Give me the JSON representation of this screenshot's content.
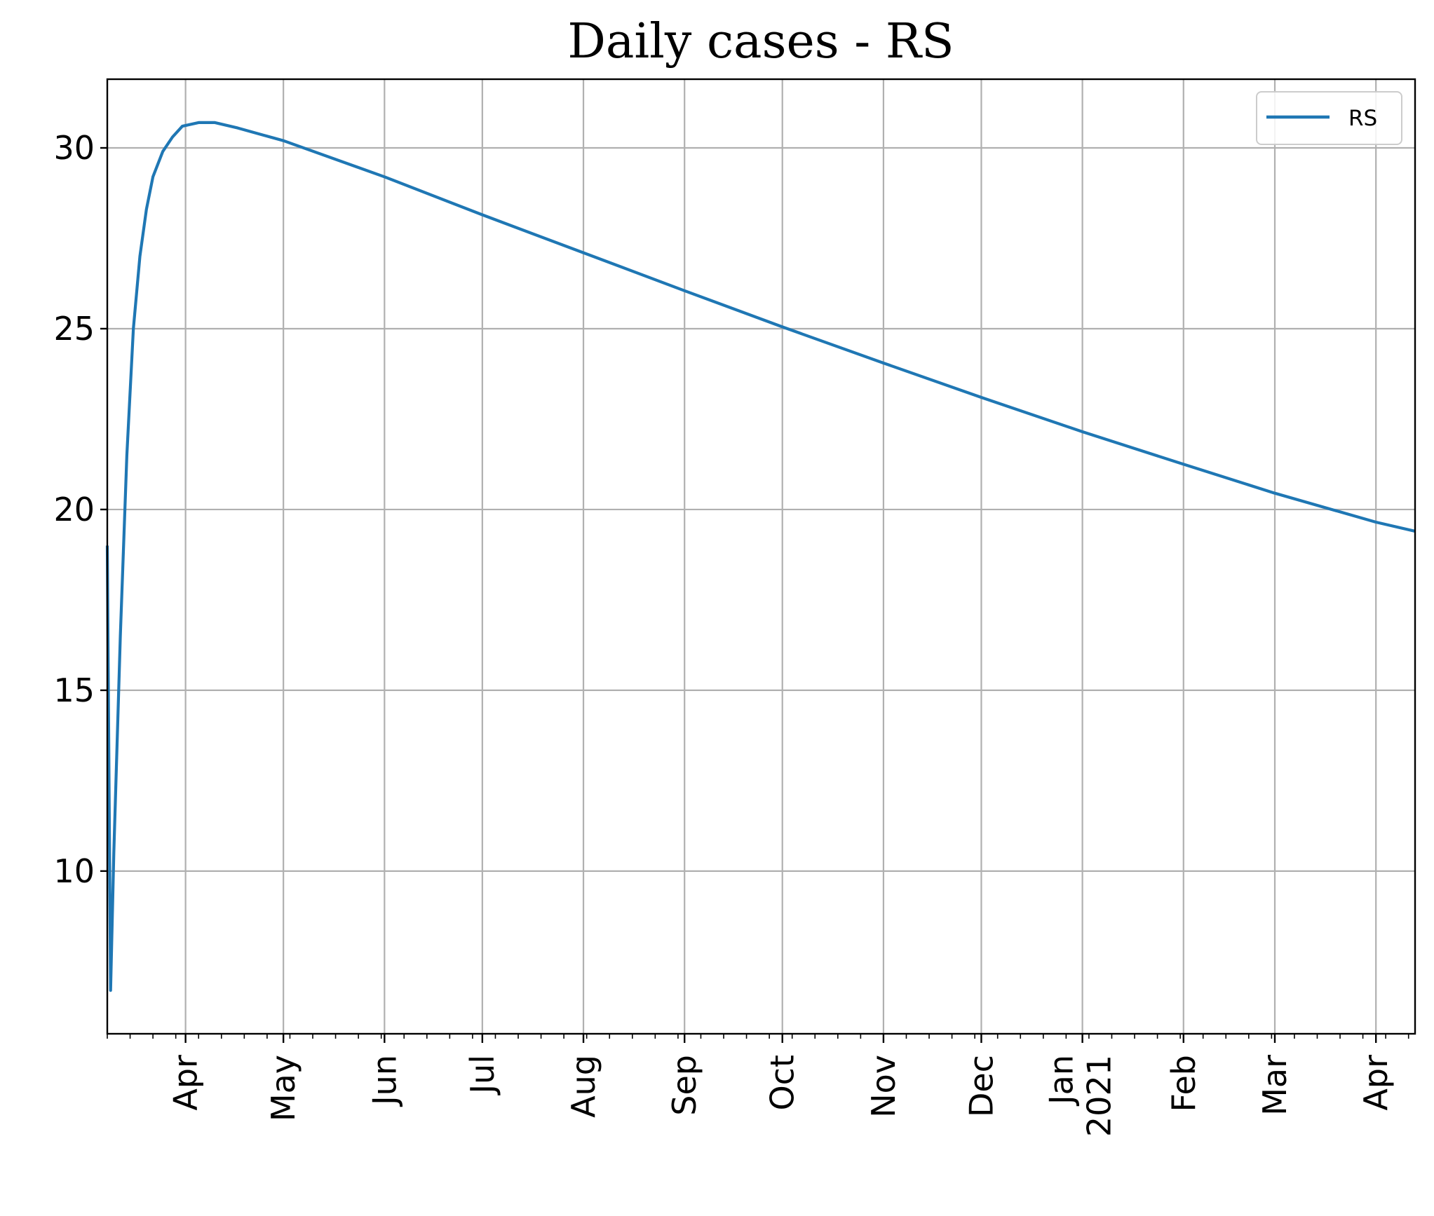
{
  "chart_data": {
    "type": "line",
    "title": "Daily cases - RS",
    "xlabel": "",
    "ylabel": "",
    "x_axis": "date",
    "xlim": [
      "2020-03-08",
      "2021-04-13"
    ],
    "ylim": [
      5.5,
      31.9
    ],
    "grid": true,
    "legend_position": "top-right",
    "y_ticks": [
      10,
      15,
      20,
      25,
      30
    ],
    "x_ticks": [
      {
        "date": "2020-04-01",
        "label": "Apr",
        "sublabel": ""
      },
      {
        "date": "2020-05-01",
        "label": "May",
        "sublabel": ""
      },
      {
        "date": "2020-06-01",
        "label": "Jun",
        "sublabel": ""
      },
      {
        "date": "2020-07-01",
        "label": "Jul",
        "sublabel": ""
      },
      {
        "date": "2020-08-01",
        "label": "Aug",
        "sublabel": ""
      },
      {
        "date": "2020-09-01",
        "label": "Sep",
        "sublabel": ""
      },
      {
        "date": "2020-10-01",
        "label": "Oct",
        "sublabel": ""
      },
      {
        "date": "2020-11-01",
        "label": "Nov",
        "sublabel": ""
      },
      {
        "date": "2020-12-01",
        "label": "Dec",
        "sublabel": ""
      },
      {
        "date": "2021-01-01",
        "label": "Jan",
        "sublabel": "2021"
      },
      {
        "date": "2021-02-01",
        "label": "Feb",
        "sublabel": ""
      },
      {
        "date": "2021-03-01",
        "label": "Mar",
        "sublabel": ""
      },
      {
        "date": "2021-04-01",
        "label": "Apr",
        "sublabel": ""
      }
    ],
    "series": [
      {
        "name": "RS",
        "color": "#1f77b4",
        "points": [
          [
            "2020-03-08",
            19.0
          ],
          [
            "2020-03-09",
            6.7
          ],
          [
            "2020-03-10",
            10.5
          ],
          [
            "2020-03-12",
            16.5
          ],
          [
            "2020-03-14",
            21.5
          ],
          [
            "2020-03-16",
            25.0
          ],
          [
            "2020-03-18",
            27.0
          ],
          [
            "2020-03-20",
            28.3
          ],
          [
            "2020-03-22",
            29.2
          ],
          [
            "2020-03-25",
            29.9
          ],
          [
            "2020-03-28",
            30.3
          ],
          [
            "2020-03-31",
            30.6
          ],
          [
            "2020-04-05",
            30.7
          ],
          [
            "2020-04-10",
            30.7
          ],
          [
            "2020-04-17",
            30.55
          ],
          [
            "2020-04-25",
            30.35
          ],
          [
            "2020-05-01",
            30.2
          ],
          [
            "2020-06-01",
            29.2
          ],
          [
            "2020-07-01",
            28.15
          ],
          [
            "2020-08-01",
            27.1
          ],
          [
            "2020-09-01",
            26.05
          ],
          [
            "2020-10-01",
            25.05
          ],
          [
            "2020-11-01",
            24.05
          ],
          [
            "2020-12-01",
            23.1
          ],
          [
            "2021-01-01",
            22.15
          ],
          [
            "2021-02-01",
            21.25
          ],
          [
            "2021-03-01",
            20.45
          ],
          [
            "2021-04-01",
            19.65
          ],
          [
            "2021-04-13",
            19.4
          ]
        ]
      }
    ]
  }
}
